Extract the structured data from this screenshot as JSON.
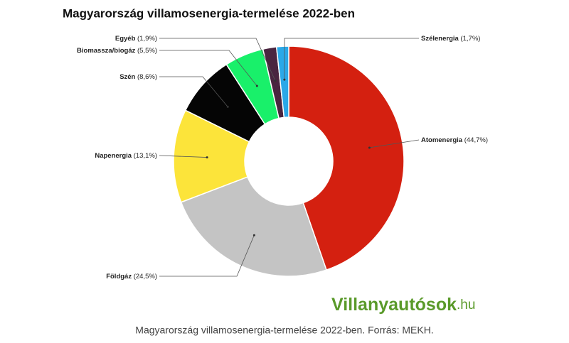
{
  "chart_data": {
    "type": "donut",
    "title": "Magyarország villamosenergia-termelése 2022-ben",
    "categories": [
      "Atomenergia",
      "Földgáz",
      "Napenergia",
      "Szén",
      "Biomassza/biogáz",
      "Egyéb",
      "Szélenergia"
    ],
    "values": [
      44.7,
      24.5,
      13.1,
      8.6,
      5.5,
      1.9,
      1.7
    ],
    "value_labels": [
      "(44,7%)",
      "(24,5%)",
      "(13,1%)",
      "(8,6%)",
      "(5,5%)",
      "(1,9%)",
      "(1,7%)"
    ],
    "colors": [
      "#d42010",
      "#c4c4c4",
      "#fce43a",
      "#050505",
      "#19f06a",
      "#4a2540",
      "#2aa8e8"
    ],
    "logo": {
      "main": "Villanyautósok",
      "suffix": ".hu"
    },
    "caption": "Magyarország villamosenergia-termelése 2022-ben. Forrás: MEKH."
  }
}
